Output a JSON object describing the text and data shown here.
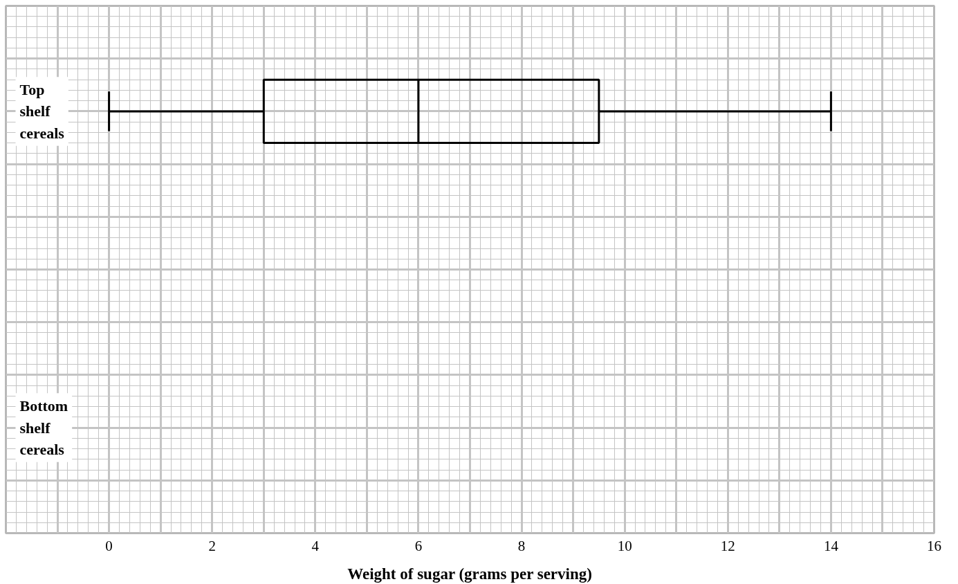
{
  "chart_data": {
    "type": "box",
    "orientation": "horizontal",
    "xlabel": "Weight of sugar (grams per serving)",
    "categories": [
      "Top shelf cereals",
      "Bottom shelf cereals"
    ],
    "boxes": [
      {
        "low": 0,
        "q1": 3,
        "median": 6,
        "q3": 9.5,
        "high": 14
      },
      null
    ],
    "xlim": [
      -2,
      16
    ],
    "xticks": [
      0,
      2,
      4,
      6,
      8,
      10,
      12,
      14,
      16
    ],
    "grid": true,
    "tick_labels": "x"
  }
}
